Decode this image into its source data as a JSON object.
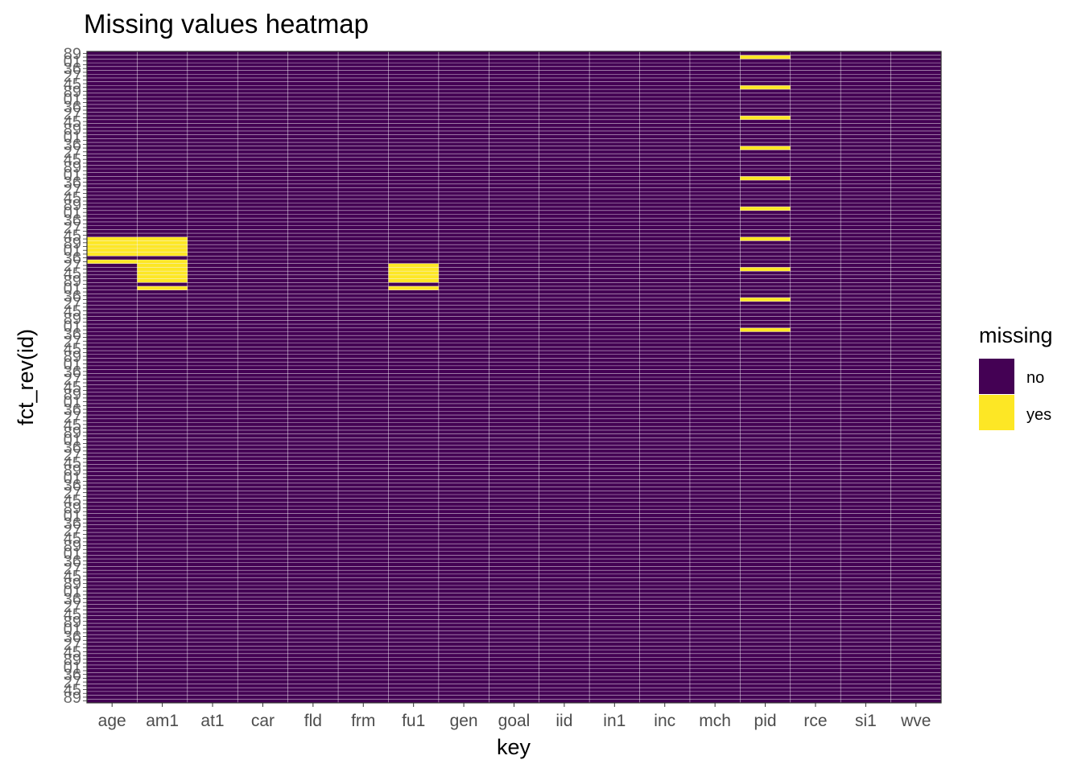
{
  "chart_data": {
    "type": "heatmap",
    "title": "Missing values heatmap",
    "xlabel": "key",
    "ylabel": "fct_rev(id)",
    "x_categories": [
      "age",
      "am1",
      "at1",
      "car",
      "fld",
      "frm",
      "fu1",
      "gen",
      "goal",
      "iid",
      "in1",
      "inc",
      "mch",
      "pid",
      "rce",
      "si1",
      "wve"
    ],
    "y_tick_labels_note": "row labels are overplotted and illegible",
    "y_row_count": 172,
    "legend": {
      "title": "missing",
      "position": "right",
      "entries": [
        {
          "label": "no",
          "color": "#440154"
        },
        {
          "label": "yes",
          "color": "#FDE725"
        }
      ]
    },
    "grid": false,
    "tile_border_color": "#ffffff",
    "missing_cells": [
      {
        "key": "age",
        "rows": [
          49,
          50,
          51,
          52,
          53,
          55
        ]
      },
      {
        "key": "am1",
        "rows": [
          49,
          50,
          51,
          52,
          53,
          55,
          56,
          57,
          58,
          59,
          60,
          62
        ]
      },
      {
        "key": "fu1",
        "rows": [
          56,
          57,
          58,
          59,
          60,
          62
        ]
      },
      {
        "key": "pid",
        "rows": [
          1,
          9,
          17,
          25,
          33,
          41,
          49,
          57,
          65,
          73
        ]
      }
    ]
  }
}
